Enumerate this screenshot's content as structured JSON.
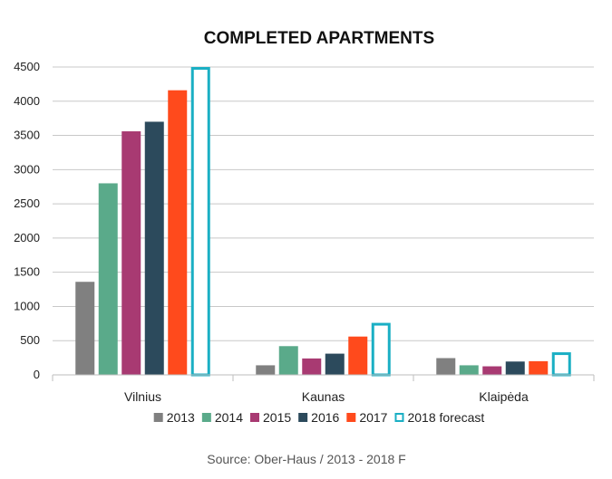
{
  "chart_data": {
    "type": "bar",
    "title": "COMPLETED APARTMENTS",
    "categories": [
      "Vilnius",
      "Kaunas",
      "Klaipėda"
    ],
    "series": [
      {
        "name": "2013",
        "values": [
          1360,
          140,
          245
        ],
        "color": "#808080",
        "style": "filled"
      },
      {
        "name": "2014",
        "values": [
          2800,
          420,
          140
        ],
        "color": "#5aaa8a",
        "style": "filled"
      },
      {
        "name": "2015",
        "values": [
          3560,
          240,
          125
        ],
        "color": "#a83a72",
        "style": "filled"
      },
      {
        "name": "2016",
        "values": [
          3700,
          310,
          195
        ],
        "color": "#2c4a5c",
        "style": "filled"
      },
      {
        "name": "2017",
        "values": [
          4160,
          560,
          200
        ],
        "color": "#ff4a1c",
        "style": "filled"
      },
      {
        "name": "2018 forecast",
        "values": [
          4500,
          760,
          330
        ],
        "color": "#1aafc4",
        "style": "outline"
      }
    ],
    "ylim": [
      0,
      4500
    ],
    "yticks": [
      0,
      500,
      1000,
      1500,
      2000,
      2500,
      3000,
      3500,
      4000,
      4500
    ],
    "grid": true,
    "legend_position": "bottom",
    "source": "Source: Ober-Haus / 2013 - 2018 F"
  }
}
